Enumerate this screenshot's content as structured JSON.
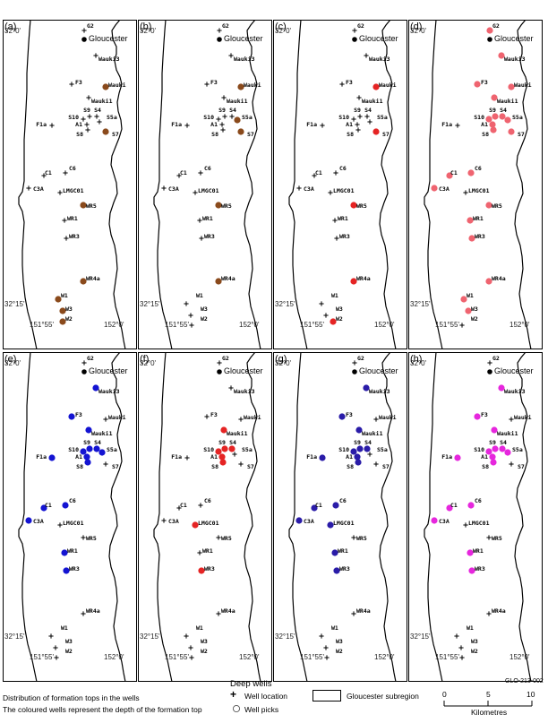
{
  "panels": [
    {
      "label": "(a)",
      "color": "#8a4a1c",
      "wells": [
        "Wauki",
        "S7",
        "WR5",
        "WR4a",
        "W1",
        "W3",
        "W2"
      ]
    },
    {
      "label": "(b)",
      "color": "#8a4a1c",
      "wells": [
        "Wauki",
        "S5a",
        "S7",
        "WR5",
        "WR4a"
      ]
    },
    {
      "label": "(c)",
      "color": "#e52424",
      "wells": [
        "Wauki",
        "S7",
        "WR5",
        "WR4a",
        "W2"
      ]
    },
    {
      "label": "(d)",
      "color": "#ef6470",
      "wells": [
        "G2",
        "Wauki3",
        "F3",
        "Wauki",
        "Wauki1",
        "S10",
        "S9",
        "S4",
        "A1",
        "S8",
        "S5a",
        "S7",
        "C1",
        "C6",
        "C3A",
        "WR5",
        "WR1",
        "WR3",
        "WR4a",
        "W1",
        "W3"
      ]
    },
    {
      "label": "(e)",
      "color": "#1414d2",
      "wells": [
        "Wauki3",
        "F3",
        "Wauki1",
        "F1a",
        "S10",
        "S9",
        "S4",
        "A1",
        "S8",
        "S5a",
        "C1",
        "C6",
        "C3A",
        "WR1",
        "WR3"
      ]
    },
    {
      "label": "(f)",
      "color": "#e52424",
      "wells": [
        "Wauki1",
        "S10",
        "S9",
        "S4",
        "A1",
        "S8",
        "LMGC01",
        "WR3"
      ]
    },
    {
      "label": "(g)",
      "color": "#2a1ca8",
      "wells": [
        "Wauki3",
        "F3",
        "Wauki1",
        "F1a",
        "S10",
        "S9",
        "S4",
        "A1",
        "S8",
        "C1",
        "C6",
        "C3A",
        "LMGC01",
        "WR1",
        "WR3"
      ]
    },
    {
      "label": "(h)",
      "color": "#e627dd",
      "wells": [
        "Wauki3",
        "F3",
        "Wauki1",
        "F1a",
        "S10",
        "S9",
        "S4",
        "A1",
        "S8",
        "S5a",
        "C1",
        "C6",
        "C3A",
        "WR1",
        "WR3"
      ]
    }
  ],
  "map": {
    "town": "Gloucester",
    "coords": {
      "lat_top": "32°0'",
      "lat_bottom": "32°15'",
      "lon_left": "151°55'",
      "lon_right": "152°0'"
    },
    "wells": [
      {
        "id": "G2",
        "label": "G2"
      },
      {
        "id": "Wauki3",
        "label": "Wauki3"
      },
      {
        "id": "F3",
        "label": "F3"
      },
      {
        "id": "Wauki",
        "label": "Wauki"
      },
      {
        "id": "Wauki1",
        "label": "Wauki1"
      },
      {
        "id": "F1a",
        "label": "F1a"
      },
      {
        "id": "S10",
        "label": "S10"
      },
      {
        "id": "S9",
        "label": "S9"
      },
      {
        "id": "S4",
        "label": "S4"
      },
      {
        "id": "A1",
        "label": "A1"
      },
      {
        "id": "S8",
        "label": "S8"
      },
      {
        "id": "S5a",
        "label": "S5a"
      },
      {
        "id": "S7",
        "label": "S7"
      },
      {
        "id": "C1",
        "label": "C1"
      },
      {
        "id": "C6",
        "label": "C6"
      },
      {
        "id": "C3A",
        "label": "C3A"
      },
      {
        "id": "LMGC01",
        "label": "LMGC01"
      },
      {
        "id": "WR5",
        "label": "WR5"
      },
      {
        "id": "WR1",
        "label": "WR1"
      },
      {
        "id": "WR3",
        "label": "WR3"
      },
      {
        "id": "WR4a",
        "label": "WR4a"
      },
      {
        "id": "W1",
        "label": "W1"
      },
      {
        "id": "W3",
        "label": "W3"
      },
      {
        "id": "W2",
        "label": "W2"
      }
    ]
  },
  "figure_code": "GLO-213-002",
  "caption": {
    "line1": "Distribution of formation tops in the wells",
    "line2": "The coloured wells represent the depth of the formation top"
  },
  "legend": {
    "title": "Deep wells",
    "well_location": "Well location",
    "well_picks": "Well picks",
    "subregion": "Gloucester subregion"
  },
  "scale": {
    "ticks": [
      "0",
      "5",
      "10"
    ],
    "unit": "Kilometres"
  }
}
